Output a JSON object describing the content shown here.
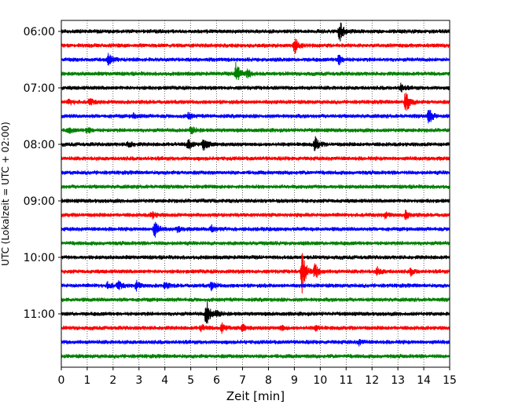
{
  "chart_data": {
    "type": "line",
    "title": "",
    "xlabel": "Zeit  [min]",
    "ylabel": "UTC (Lokalzeit = UTC + 02:00)",
    "xlim": [
      0,
      15
    ],
    "x_ticks": [
      "0",
      "1",
      "2",
      "3",
      "4",
      "5",
      "6",
      "7",
      "8",
      "9",
      "10",
      "11",
      "12",
      "13",
      "14",
      "15"
    ],
    "y_tick_labels": [
      "06:00",
      "07:00",
      "08:00",
      "09:00",
      "10:00",
      "11:00"
    ],
    "trace_interval_min": 15,
    "grid": "vertical dotted lines at each minute",
    "legend": "none",
    "colors": [
      "#000000",
      "#ff0000",
      "#0000ff",
      "#008000"
    ],
    "series": [
      {
        "start": "06:00",
        "events": [
          {
            "t": 10.75,
            "amp": 14
          }
        ]
      },
      {
        "start": "06:15",
        "events": [
          {
            "t": 9.0,
            "amp": 12
          }
        ]
      },
      {
        "start": "06:30",
        "events": [
          {
            "t": 1.8,
            "amp": 9
          },
          {
            "t": 10.7,
            "amp": 7
          }
        ]
      },
      {
        "start": "06:45",
        "events": [
          {
            "t": 6.75,
            "amp": 16
          },
          {
            "t": 7.2,
            "amp": 5
          }
        ]
      },
      {
        "start": "07:00",
        "events": [
          {
            "t": 13.1,
            "amp": 5
          }
        ]
      },
      {
        "start": "07:15",
        "events": [
          {
            "t": 13.3,
            "amp": 16
          },
          {
            "t": 1.1,
            "amp": 4
          },
          {
            "t": 0.3,
            "amp": 3
          }
        ]
      },
      {
        "start": "07:30",
        "events": [
          {
            "t": 14.2,
            "amp": 10
          },
          {
            "t": 4.9,
            "amp": 4
          },
          {
            "t": 2.8,
            "amp": 3
          }
        ]
      },
      {
        "start": "07:45",
        "events": [
          {
            "t": 5.0,
            "amp": 6
          },
          {
            "t": 1.0,
            "amp": 4
          },
          {
            "t": 0.3,
            "amp": 3
          }
        ]
      },
      {
        "start": "08:00",
        "events": [
          {
            "t": 4.9,
            "amp": 8
          },
          {
            "t": 5.5,
            "amp": 9
          },
          {
            "t": 9.8,
            "amp": 9
          },
          {
            "t": 2.6,
            "amp": 4
          }
        ]
      },
      {
        "start": "08:15",
        "events": []
      },
      {
        "start": "08:30",
        "events": []
      },
      {
        "start": "08:45",
        "events": []
      },
      {
        "start": "09:00",
        "events": []
      },
      {
        "start": "09:15",
        "events": [
          {
            "t": 3.5,
            "amp": 4
          },
          {
            "t": 13.3,
            "amp": 5
          },
          {
            "t": 12.5,
            "amp": 3
          }
        ]
      },
      {
        "start": "09:30",
        "events": [
          {
            "t": 3.6,
            "amp": 10
          },
          {
            "t": 5.8,
            "amp": 4
          },
          {
            "t": 4.5,
            "amp": 3
          }
        ]
      },
      {
        "start": "09:45",
        "events": []
      },
      {
        "start": "10:00",
        "events": []
      },
      {
        "start": "10:15",
        "events": [
          {
            "t": 9.3,
            "amp": 26
          },
          {
            "t": 9.8,
            "amp": 10
          },
          {
            "t": 12.2,
            "amp": 5
          },
          {
            "t": 13.5,
            "amp": 4
          }
        ]
      },
      {
        "start": "10:30",
        "events": [
          {
            "t": 2.2,
            "amp": 5
          },
          {
            "t": 2.9,
            "amp": 5
          },
          {
            "t": 4.0,
            "amp": 4
          },
          {
            "t": 5.8,
            "amp": 5
          },
          {
            "t": 1.8,
            "amp": 4
          }
        ]
      },
      {
        "start": "10:45",
        "events": []
      },
      {
        "start": "11:00",
        "events": [
          {
            "t": 5.6,
            "amp": 18
          },
          {
            "t": 6.0,
            "amp": 5
          }
        ]
      },
      {
        "start": "11:15",
        "events": [
          {
            "t": 6.2,
            "amp": 6
          },
          {
            "t": 5.4,
            "amp": 4
          },
          {
            "t": 7.0,
            "amp": 4
          },
          {
            "t": 8.5,
            "amp": 3
          },
          {
            "t": 9.8,
            "amp": 3
          }
        ]
      },
      {
        "start": "11:30",
        "events": [
          {
            "t": 11.5,
            "amp": 3
          }
        ]
      },
      {
        "start": "11:45",
        "events": []
      }
    ]
  }
}
